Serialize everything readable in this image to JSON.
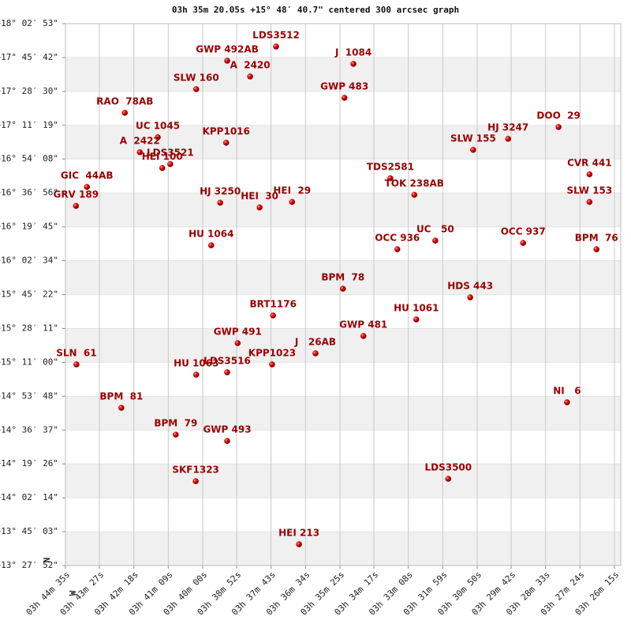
{
  "chart_data": {
    "type": "scatter",
    "title": "03h 35m 20.05s +15° 48′ 40.7\" centered 300 arcsec graph",
    "compass": {
      "north": "N",
      "west": "W"
    },
    "xlim": [
      13475,
      12375
    ],
    "ylim": [
      48472,
      64973
    ],
    "grid": true,
    "xticks": [
      {
        "value": 13475,
        "label": "03h 44m 35s"
      },
      {
        "value": 13407,
        "label": "03h 43m 27s"
      },
      {
        "value": 13338,
        "label": "03h 42m 18s"
      },
      {
        "value": 13269,
        "label": "03h 41m 09s"
      },
      {
        "value": 13200,
        "label": "03h 40m 00s"
      },
      {
        "value": 13132,
        "label": "03h 38m 52s"
      },
      {
        "value": 13063,
        "label": "03h 37m 43s"
      },
      {
        "value": 12994,
        "label": "03h 36m 34s"
      },
      {
        "value": 12925,
        "label": "03h 35m 25s"
      },
      {
        "value": 12857,
        "label": "03h 34m 17s"
      },
      {
        "value": 12788,
        "label": "03h 33m 08s"
      },
      {
        "value": 12719,
        "label": "03h 31m 59s"
      },
      {
        "value": 12650,
        "label": "03h 30m 50s"
      },
      {
        "value": 12582,
        "label": "03h 29m 42s"
      },
      {
        "value": 12513,
        "label": "03h 28m 33s"
      },
      {
        "value": 12444,
        "label": "03h 27m 24s"
      },
      {
        "value": 12375,
        "label": "03h 26m 15s"
      }
    ],
    "yticks": [
      {
        "value": 64973,
        "label": "+18° 02′ 53\""
      },
      {
        "value": 63942,
        "label": "+17° 45′ 42\""
      },
      {
        "value": 62910,
        "label": "+17° 28′ 30\""
      },
      {
        "value": 61879,
        "label": "+17° 11′ 19\""
      },
      {
        "value": 60848,
        "label": "+16° 54′ 08\""
      },
      {
        "value": 59816,
        "label": "+16° 36′ 56\""
      },
      {
        "value": 58785,
        "label": "+16° 19′ 45\""
      },
      {
        "value": 57754,
        "label": "+16° 02′ 34\""
      },
      {
        "value": 56722,
        "label": "+15° 45′ 22\""
      },
      {
        "value": 55691,
        "label": "+15° 28′ 11\""
      },
      {
        "value": 54660,
        "label": "+15° 11′ 00\""
      },
      {
        "value": 53628,
        "label": "+14° 53′ 48\""
      },
      {
        "value": 52597,
        "label": "+14° 36′ 37\""
      },
      {
        "value": 51566,
        "label": "+14° 19′ 26\""
      },
      {
        "value": 50534,
        "label": "+14° 02′ 14\""
      },
      {
        "value": 49503,
        "label": "+13° 45′ 03\""
      },
      {
        "value": 48472,
        "label": "+13° 27′ 52\""
      }
    ],
    "series": [
      {
        "color": "#cc0000",
        "labels": [
          "LDS3512",
          "GWP 492AB",
          "A  2420",
          "J  1084",
          "SLW 160",
          "GWP 483",
          "RAO  78AB",
          "UC 1045",
          "A  2422",
          "LDS3521",
          "HEI 100",
          "KPP1016",
          "DOO  29",
          "HJ 3247",
          "SLW 155",
          "CVR 441",
          "TDS2581",
          "TOK 238AB",
          "GIC  44AB",
          "GRV 189",
          "HJ 3250",
          "HEI  30",
          "HEI  29",
          "SLW 153",
          "HU 1064",
          "OCC 936",
          "UC   50",
          "OCC 937",
          "BPM  76",
          "BPM  78",
          "HDS 443",
          "BRT1176",
          "HU 1061",
          "GWP 481",
          "GWP 491",
          "J   26AB",
          "SLN  61",
          "KPP1023",
          "LDS3516",
          "HU 1063",
          "NI   6",
          "BPM  81",
          "BPM  79",
          "GWP 493",
          "SKF1323",
          "LDS3500",
          "HEI 213"
        ],
        "x": [
          13053,
          13151,
          13105,
          12898,
          13213,
          12916,
          13356,
          13290,
          13326,
          13265,
          13281,
          13153,
          12487,
          12588,
          12658,
          12425,
          12824,
          12776,
          13432,
          13454,
          13165,
          13086,
          13021,
          12425,
          13183,
          12810,
          12734,
          12558,
          12411,
          12919,
          12664,
          13059,
          12772,
          12878,
          13130,
          12974,
          13453,
          13061,
          13151,
          13213,
          12470,
          13363,
          13254,
          13151,
          13214,
          12708,
          13007
        ],
        "values": [
          64276,
          63844,
          63364,
          63748,
          62979,
          62715,
          62259,
          61514,
          61058,
          60697,
          60577,
          61346,
          61826,
          61466,
          61130,
          60385,
          60265,
          59761,
          60001,
          59424,
          59520,
          59376,
          59544,
          59544,
          58223,
          58103,
          58367,
          58295,
          58103,
          56902,
          56638,
          56086,
          55965,
          55461,
          55245,
          54933,
          54596,
          54596,
          54356,
          54284,
          53443,
          53275,
          52459,
          52266,
          51041,
          51113,
          49120
        ]
      }
    ]
  }
}
